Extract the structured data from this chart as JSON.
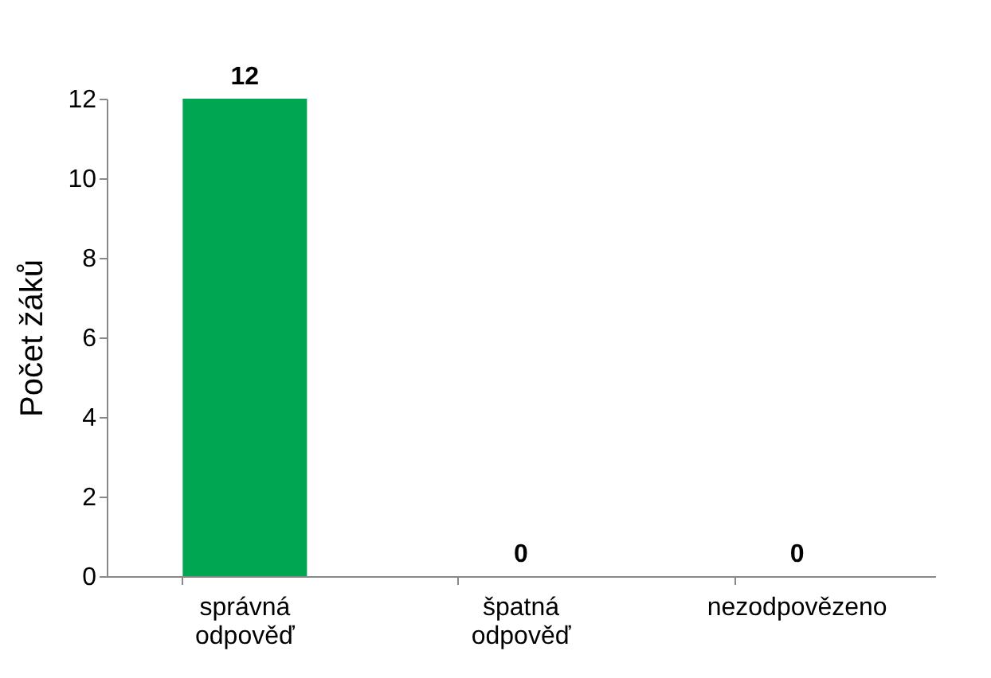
{
  "chart_data": {
    "type": "bar",
    "ylabel": "Počet žáků",
    "categories": [
      "správná odpověď",
      "špatná odpověď",
      "nezodpovězeno"
    ],
    "values": [
      12,
      0,
      0
    ],
    "color": "#00a651",
    "ylim": [
      0,
      12
    ],
    "yticks": [
      0,
      2,
      4,
      6,
      8,
      10,
      12
    ],
    "data_labels": true,
    "grid": false
  }
}
